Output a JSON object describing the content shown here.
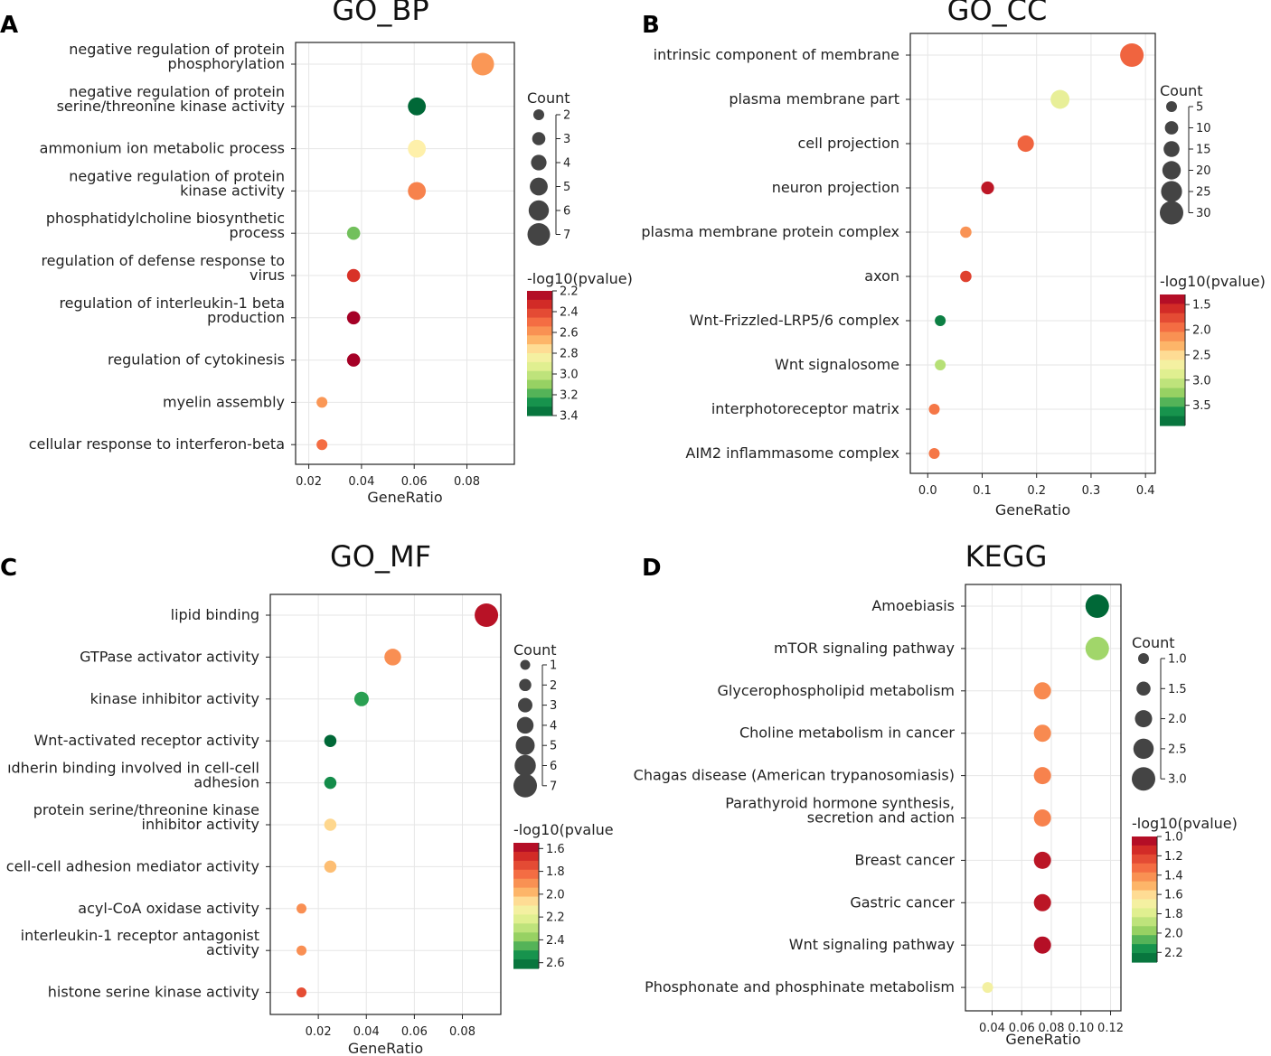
{
  "chart_data": [
    {
      "panel_letter": "A",
      "type": "scatter",
      "title": "GO_BP",
      "xlabel": "GeneRatio",
      "xlim": [
        0.015,
        0.098
      ],
      "xticks": [
        0.02,
        0.04,
        0.06,
        0.08
      ],
      "xtick_labels": [
        "0.02",
        "0.04",
        "0.06",
        "0.08"
      ],
      "categories": [
        [
          "negative regulation of protein",
          "phosphorylation"
        ],
        [
          "negative regulation of protein",
          "serine/threonine kinase activity"
        ],
        [
          "ammonium ion metabolic process"
        ],
        [
          "negative regulation of protein",
          "kinase activity"
        ],
        [
          "phosphatidylcholine biosynthetic",
          "process"
        ],
        [
          "regulation of defense response to",
          "virus"
        ],
        [
          "regulation of interleukin-1 beta",
          "production"
        ],
        [
          "regulation of cytokinesis"
        ],
        [
          "myelin assembly"
        ],
        [
          "cellular response to interferon-beta"
        ]
      ],
      "gene_ratio": [
        0.086,
        0.061,
        0.061,
        0.061,
        0.037,
        0.037,
        0.037,
        0.037,
        0.025,
        0.025
      ],
      "count": [
        7,
        5,
        5,
        5,
        3,
        3,
        3,
        3,
        2,
        2
      ],
      "neg_log10_pvalue": [
        2.6,
        3.4,
        2.8,
        2.55,
        3.15,
        2.35,
        2.2,
        2.2,
        2.6,
        2.5
      ],
      "size_legend": {
        "title": "Count",
        "values": [
          2,
          3,
          4,
          5,
          6,
          7
        ],
        "labels": [
          "2",
          "3",
          "4",
          "5",
          "6",
          "7"
        ]
      },
      "color_legend": {
        "title": "-log10(pvalue)",
        "range": [
          2.2,
          3.4
        ],
        "ticks": [
          2.2,
          2.4,
          2.6,
          2.8,
          3.0,
          3.2,
          3.4
        ],
        "tick_labels": [
          "2.2",
          "2.4",
          "2.6",
          "2.8",
          "3.0",
          "3.2",
          "3.4"
        ]
      }
    },
    {
      "panel_letter": "B",
      "type": "scatter",
      "title": "GO_CC",
      "xlabel": "GeneRatio",
      "xlim": [
        -0.032,
        0.418
      ],
      "xticks": [
        0.0,
        0.1,
        0.2,
        0.3,
        0.4
      ],
      "xtick_labels": [
        "0.0",
        "0.1",
        "0.2",
        "0.3",
        "0.4"
      ],
      "categories": [
        [
          "intrinsic component of membrane"
        ],
        [
          "plasma membrane part"
        ],
        [
          "cell projection"
        ],
        [
          "neuron projection"
        ],
        [
          "plasma membrane protein complex"
        ],
        [
          "axon"
        ],
        [
          "Wnt-Frizzled-LRP5/6 complex"
        ],
        [
          "Wnt signalosome"
        ],
        [
          "interphotoreceptor matrix"
        ],
        [
          "AIM2 inflammasome complex"
        ]
      ],
      "gene_ratio": [
        0.375,
        0.243,
        0.18,
        0.11,
        0.07,
        0.07,
        0.023,
        0.023,
        0.012,
        0.012
      ],
      "count": [
        32,
        21,
        16,
        9,
        6,
        6,
        2,
        2,
        1,
        1
      ],
      "neg_log10_pvalue": [
        1.9,
        2.8,
        1.9,
        1.45,
        2.15,
        1.7,
        3.75,
        3.1,
        2.0,
        2.0
      ],
      "size_legend": {
        "title": "Count",
        "values": [
          5,
          10,
          15,
          20,
          25,
          30
        ],
        "labels": [
          "5",
          "10",
          "15",
          "20",
          "25",
          "30"
        ]
      },
      "color_legend": {
        "title": "-log10(pvalue)",
        "range": [
          1.3,
          3.9
        ],
        "ticks": [
          1.5,
          2.0,
          2.5,
          3.0,
          3.5
        ],
        "tick_labels": [
          "1.5",
          "2.0",
          "2.5",
          "3.0",
          "3.5"
        ]
      }
    },
    {
      "panel_letter": "C",
      "type": "scatter",
      "title": "GO_MF",
      "xlabel": "GeneRatio",
      "xlim": [
        0.0,
        0.096
      ],
      "xticks": [
        0.02,
        0.04,
        0.06,
        0.08
      ],
      "xtick_labels": [
        "0.02",
        "0.04",
        "0.06",
        "0.08"
      ],
      "categories": [
        [
          "lipid binding"
        ],
        [
          "GTPase activator activity"
        ],
        [
          "kinase inhibitor activity"
        ],
        [
          "Wnt-activated receptor activity"
        ],
        [
          "ıdherin binding involved in cell-cell",
          "adhesion"
        ],
        [
          "protein serine/threonine kinase",
          "inhibitor activity"
        ],
        [
          "cell-cell adhesion mediator activity"
        ],
        [
          "acyl-CoA oxidase activity"
        ],
        [
          "interleukin-1 receptor antagonist",
          "activity"
        ],
        [
          "histone serine kinase activity"
        ]
      ],
      "gene_ratio": [
        0.09,
        0.051,
        0.038,
        0.025,
        0.025,
        0.025,
        0.025,
        0.013,
        0.013,
        0.013
      ],
      "count": [
        7,
        4,
        3,
        2,
        2,
        2,
        2,
        1,
        1,
        1
      ],
      "neg_log10_pvalue": [
        1.6,
        1.9,
        2.5,
        2.65,
        2.55,
        2.05,
        2.0,
        1.9,
        1.9,
        1.75
      ],
      "size_legend": {
        "title": "Count",
        "values": [
          1,
          2,
          3,
          4,
          5,
          6,
          7
        ],
        "labels": [
          "1",
          "2",
          "3",
          "4",
          "5",
          "6",
          "7"
        ]
      },
      "color_legend": {
        "title": "-log10(pvalue",
        "range": [
          1.55,
          2.65
        ],
        "ticks": [
          1.6,
          1.8,
          2.0,
          2.2,
          2.4,
          2.6
        ],
        "tick_labels": [
          "1.6",
          "1.8",
          "2.0",
          "2.2",
          "2.4",
          "2.6"
        ]
      }
    },
    {
      "panel_letter": "D",
      "type": "scatter",
      "title": "KEGG",
      "xlabel": "GeneRatio",
      "xlim": [
        0.022,
        0.127
      ],
      "xticks": [
        0.04,
        0.06,
        0.08,
        0.1,
        0.12
      ],
      "xtick_labels": [
        "0.04",
        "0.06",
        "0.08",
        "0.10",
        "0.12"
      ],
      "categories": [
        [
          "Amoebiasis"
        ],
        [
          "mTOR signaling pathway"
        ],
        [
          "Glycerophospholipid metabolism"
        ],
        [
          "Choline metabolism in cancer"
        ],
        [
          "Chagas disease (American trypanosomiasis)"
        ],
        [
          "Parathyroid hormone synthesis,",
          "secretion and action"
        ],
        [
          "Breast cancer"
        ],
        [
          "Gastric cancer"
        ],
        [
          "Wnt signaling pathway"
        ],
        [
          "Phosphonate and phosphinate metabolism"
        ]
      ],
      "gene_ratio": [
        0.111,
        0.111,
        0.074,
        0.074,
        0.074,
        0.074,
        0.074,
        0.074,
        0.074,
        0.037
      ],
      "count": [
        3,
        3,
        2,
        2,
        2,
        2,
        2,
        2,
        2,
        1
      ],
      "neg_log10_pvalue": [
        2.3,
        1.95,
        1.4,
        1.4,
        1.38,
        1.38,
        1.07,
        1.07,
        1.05,
        1.7
      ],
      "size_legend": {
        "title": "Count",
        "values": [
          1.0,
          1.5,
          2.0,
          2.5,
          3.0
        ],
        "labels": [
          "1.0",
          "1.5",
          "2.0",
          "2.5",
          "3.0"
        ]
      },
      "color_legend": {
        "title": "-log10(pvalue)",
        "range": [
          1.0,
          2.3
        ],
        "ticks": [
          1.0,
          1.2,
          1.4,
          1.6,
          1.8,
          2.0,
          2.2
        ],
        "tick_labels": [
          "1.0",
          "1.2",
          "1.4",
          "1.6",
          "1.8",
          "2.0",
          "2.2"
        ]
      }
    }
  ]
}
